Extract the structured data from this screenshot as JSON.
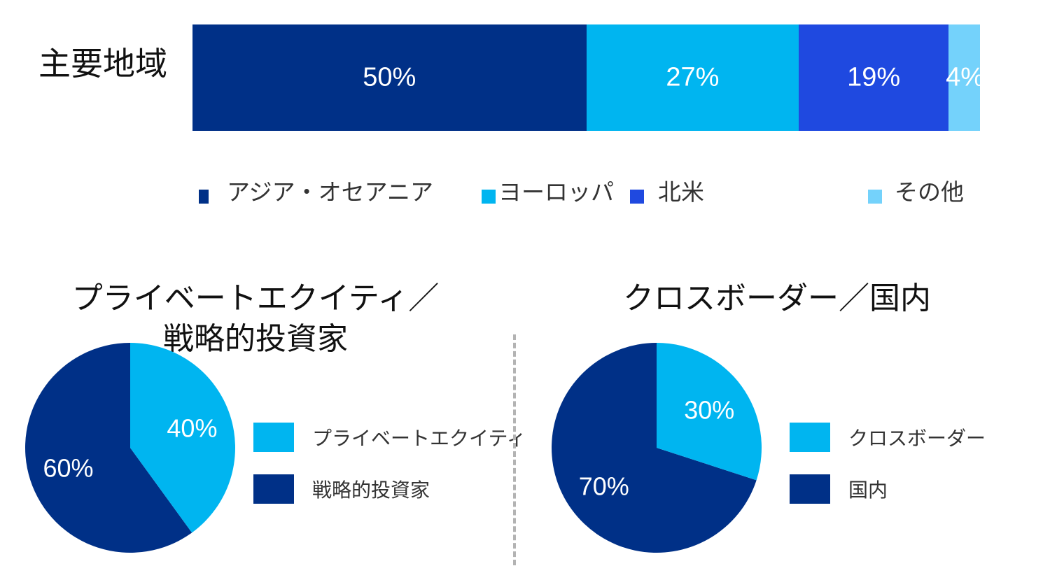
{
  "colors": {
    "dark_navy": "#003087",
    "sky": "#00b5f0",
    "royal": "#1f49e0",
    "light_sky": "#74d2fb"
  },
  "region": {
    "title": "主要地域",
    "segments": [
      {
        "label": "50%",
        "color": "#003087"
      },
      {
        "label": "27%",
        "color": "#00b5f0"
      },
      {
        "label": "19%",
        "color": "#1f49e0"
      },
      {
        "label": "4%",
        "color": "#74d2fb"
      }
    ],
    "legend": [
      {
        "label": "アジア・オセアニア",
        "color": "#003087"
      },
      {
        "label": "ヨーロッパ",
        "color": "#00b5f0"
      },
      {
        "label": "北米",
        "color": "#1f49e0"
      },
      {
        "label": "その他",
        "color": "#74d2fb"
      }
    ]
  },
  "pie_left": {
    "title_line1": "プライベートエクイティ／",
    "title_line2": "戦略的投資家",
    "slices": [
      {
        "label": "40%",
        "color": "#00b5f0"
      },
      {
        "label": "60%",
        "color": "#003087"
      }
    ],
    "legend": [
      {
        "label": "プライベートエクイティ",
        "color": "#00b5f0"
      },
      {
        "label": "戦略的投資家",
        "color": "#003087"
      }
    ]
  },
  "pie_right": {
    "title": "クロスボーダー／国内",
    "slices": [
      {
        "label": "30%",
        "color": "#00b5f0"
      },
      {
        "label": "70%",
        "color": "#003087"
      }
    ],
    "legend": [
      {
        "label": "クロスボーダー",
        "color": "#00b5f0"
      },
      {
        "label": "国内",
        "color": "#003087"
      }
    ]
  },
  "chart_data": [
    {
      "type": "bar",
      "stacked": true,
      "orientation": "horizontal",
      "title": "主要地域",
      "categories": [
        "主要地域"
      ],
      "series": [
        {
          "name": "アジア・オセアニア",
          "values": [
            50
          ]
        },
        {
          "name": "ヨーロッパ",
          "values": [
            27
          ]
        },
        {
          "name": "北米",
          "values": [
            19
          ]
        },
        {
          "name": "その他",
          "values": [
            4
          ]
        }
      ],
      "unit": "%",
      "legend_position": "bottom"
    },
    {
      "type": "pie",
      "title": "プライベートエクイティ／戦略的投資家",
      "categories": [
        "プライベートエクイティ",
        "戦略的投資家"
      ],
      "values": [
        40,
        60
      ],
      "unit": "%",
      "legend_position": "right"
    },
    {
      "type": "pie",
      "title": "クロスボーダー／国内",
      "categories": [
        "クロスボーダー",
        "国内"
      ],
      "values": [
        30,
        70
      ],
      "unit": "%",
      "legend_position": "right"
    }
  ]
}
